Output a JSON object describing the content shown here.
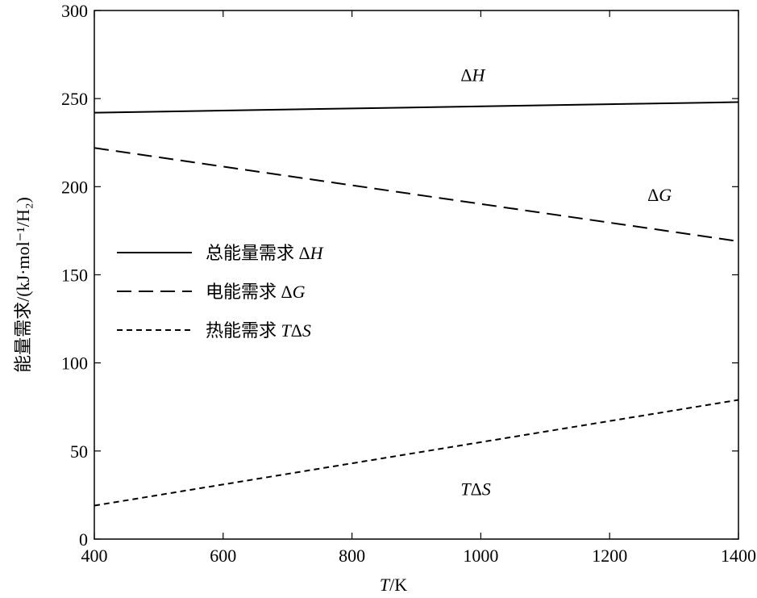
{
  "chart_data": {
    "type": "line",
    "title": "",
    "xlabel": "T/K",
    "ylabel": "能量需求/(kJ·mol⁻¹/H₂)",
    "xlim": [
      400,
      1400
    ],
    "ylim": [
      0,
      300
    ],
    "xticks": [
      400,
      600,
      800,
      1000,
      1200,
      1400
    ],
    "yticks": [
      0,
      50,
      100,
      150,
      200,
      250,
      300
    ],
    "grid": false,
    "legend_position": "center-left",
    "series": [
      {
        "name": "总能量需求 ΔH",
        "style": "solid",
        "annotation": "ΔH",
        "x": [
          400,
          1400
        ],
        "y": [
          242,
          248
        ]
      },
      {
        "name": "电能需求 ΔG",
        "style": "long-dash",
        "annotation": "ΔG",
        "x": [
          400,
          1400
        ],
        "y": [
          222,
          169
        ]
      },
      {
        "name": "热能需求 TΔS",
        "style": "short-dash",
        "annotation": "TΔS",
        "x": [
          400,
          1400
        ],
        "y": [
          19,
          79
        ]
      }
    ]
  }
}
